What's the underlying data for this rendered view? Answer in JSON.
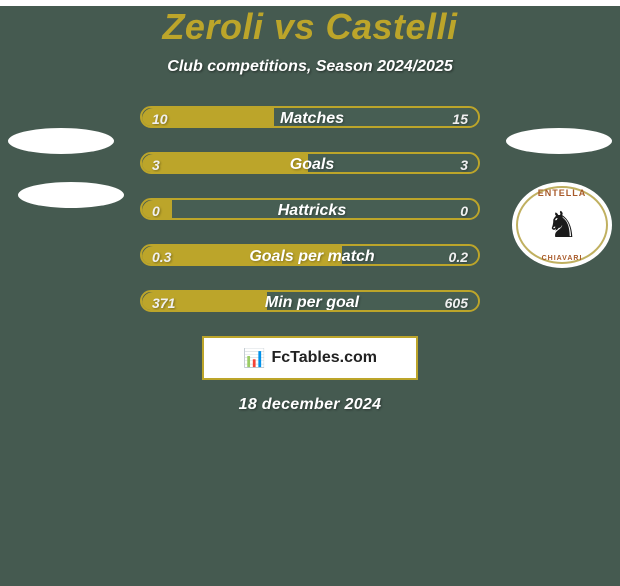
{
  "page": {
    "background": "#455a50",
    "text_color_title": "#bca52a",
    "text_color_white": "#ffffff"
  },
  "header": {
    "title": "Zeroli vs Castelli",
    "subtitle": "Club competitions, Season 2024/2025"
  },
  "bars": {
    "track_width": 340,
    "track_border_color": "#bca52a",
    "left_fill": "#bca52a",
    "right_fill": "#475e53",
    "label_color": "#ffffff",
    "value_color": "#f0f0f0",
    "rows": [
      {
        "label": "Matches",
        "left_value": "10",
        "right_value": "15",
        "left_frac": 0.4
      },
      {
        "label": "Goals",
        "left_value": "3",
        "right_value": "3",
        "left_frac": 0.5
      },
      {
        "label": "Hattricks",
        "left_value": "0",
        "right_value": "0",
        "left_frac": 0.1
      },
      {
        "label": "Goals per match",
        "left_value": "0.3",
        "right_value": "0.2",
        "left_frac": 0.6
      },
      {
        "label": "Min per goal",
        "left_value": "371",
        "right_value": "605",
        "left_frac": 0.38
      }
    ]
  },
  "side_shapes": {
    "fill": "#ffffff"
  },
  "crest": {
    "bg": "#ffffff",
    "ring": "#c0b060",
    "top_text": "ENTELLA",
    "bottom_text": "CHIAVARI",
    "top_color": "#a85a2a",
    "bottom_color": "#a85a2a",
    "figure_glyph": "♞",
    "figure_color": "#1a1a1a"
  },
  "attribution": {
    "bg": "#ffffff",
    "border": "#bca52a",
    "icon_glyph": "📊",
    "text": "FcTables.com",
    "text_color": "#222222"
  },
  "footer": {
    "date": "18 december 2024"
  }
}
